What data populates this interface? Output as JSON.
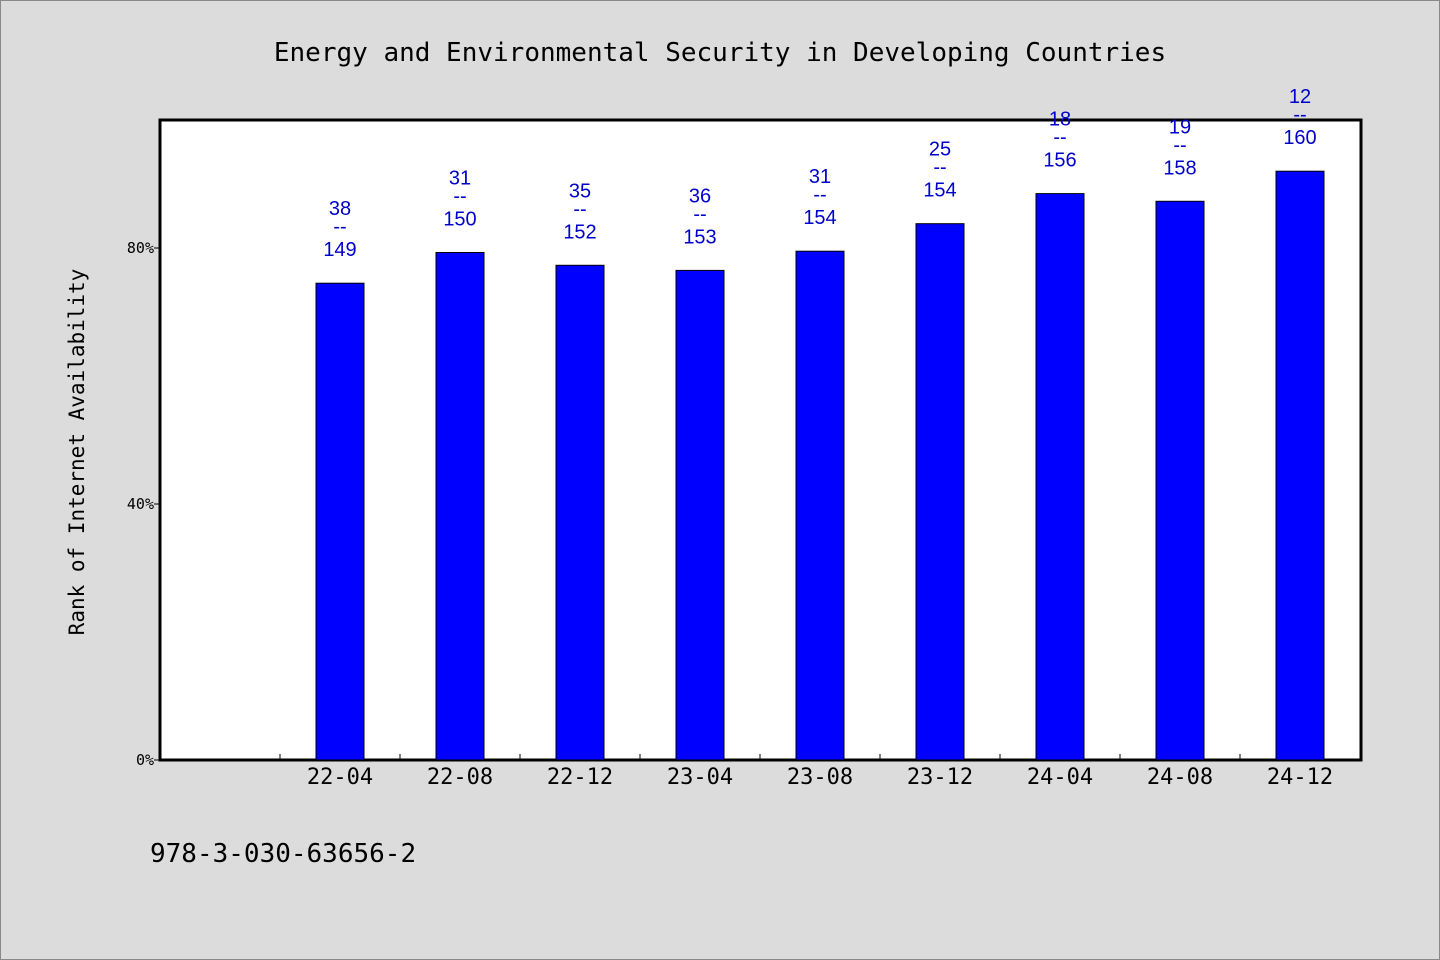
{
  "chart_data": {
    "type": "bar",
    "title": "Energy and Environmental Security in Developing Countries",
    "xlabel": "",
    "ylabel": "Rank of Internet Availability",
    "categories": [
      "22-04",
      "22-08",
      "22-12",
      "23-04",
      "23-08",
      "23-12",
      "24-04",
      "24-08",
      "24-12"
    ],
    "values": [
      74.5,
      79.3,
      77.3,
      76.5,
      79.5,
      83.8,
      88.5,
      87.3,
      92.0
    ],
    "ylim": [
      0,
      100
    ],
    "yticks": [
      {
        "value": 0,
        "label": "0%"
      },
      {
        "value": 40,
        "label": "40%"
      },
      {
        "value": 80,
        "label": "80%"
      }
    ],
    "data_labels": [
      {
        "top": "38",
        "sep": "--",
        "bottom": "149"
      },
      {
        "top": "31",
        "sep": "--",
        "bottom": "150"
      },
      {
        "top": "35",
        "sep": "--",
        "bottom": "152"
      },
      {
        "top": "36",
        "sep": "--",
        "bottom": "153"
      },
      {
        "top": "31",
        "sep": "--",
        "bottom": "154"
      },
      {
        "top": "25",
        "sep": "--",
        "bottom": "154"
      },
      {
        "top": "18",
        "sep": "--",
        "bottom": "156"
      },
      {
        "top": "19",
        "sep": "--",
        "bottom": "158"
      },
      {
        "top": "12",
        "sep": "--",
        "bottom": "160"
      }
    ],
    "grid": false,
    "bar_color": "#0000ff",
    "label_color": "#0000cc"
  },
  "footer": "978-3-030-63656-2"
}
